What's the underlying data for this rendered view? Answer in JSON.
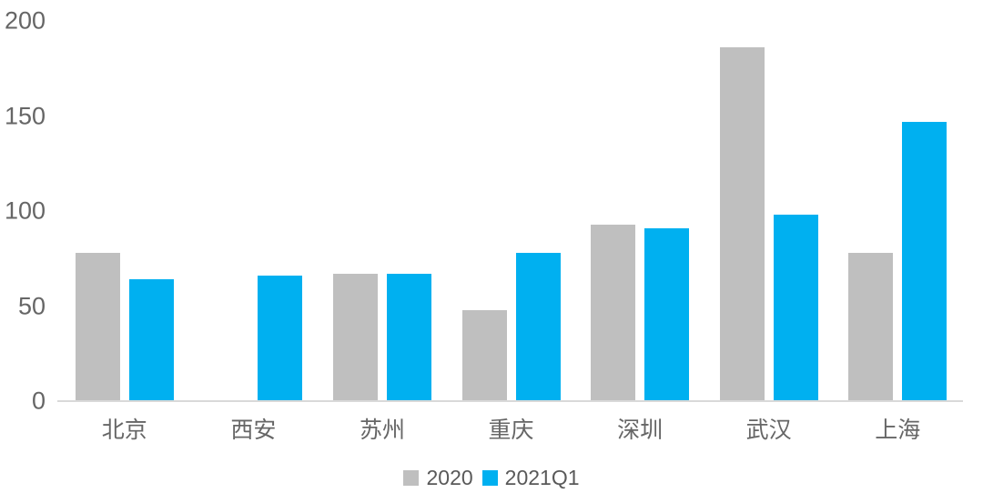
{
  "chart_data": {
    "type": "bar",
    "categories": [
      "北京",
      "西安",
      "苏州",
      "重庆",
      "深圳",
      "武汉",
      "上海"
    ],
    "series": [
      {
        "name": "2020",
        "color": "#bfbfbf",
        "values": [
          78,
          0,
          67,
          48,
          93,
          186,
          78
        ]
      },
      {
        "name": "2021Q1",
        "color": "#00b0f0",
        "values": [
          64,
          66,
          67,
          78,
          91,
          98,
          147
        ]
      }
    ],
    "ylim": [
      0,
      200
    ],
    "yticks": [
      0,
      50,
      100,
      150,
      200
    ],
    "grid": false,
    "legend_position": "bottom",
    "colors": {
      "axis_line": "#d9d9d9",
      "tick_label": "#666666",
      "legend_text": "#595959",
      "background": "#ffffff"
    }
  }
}
